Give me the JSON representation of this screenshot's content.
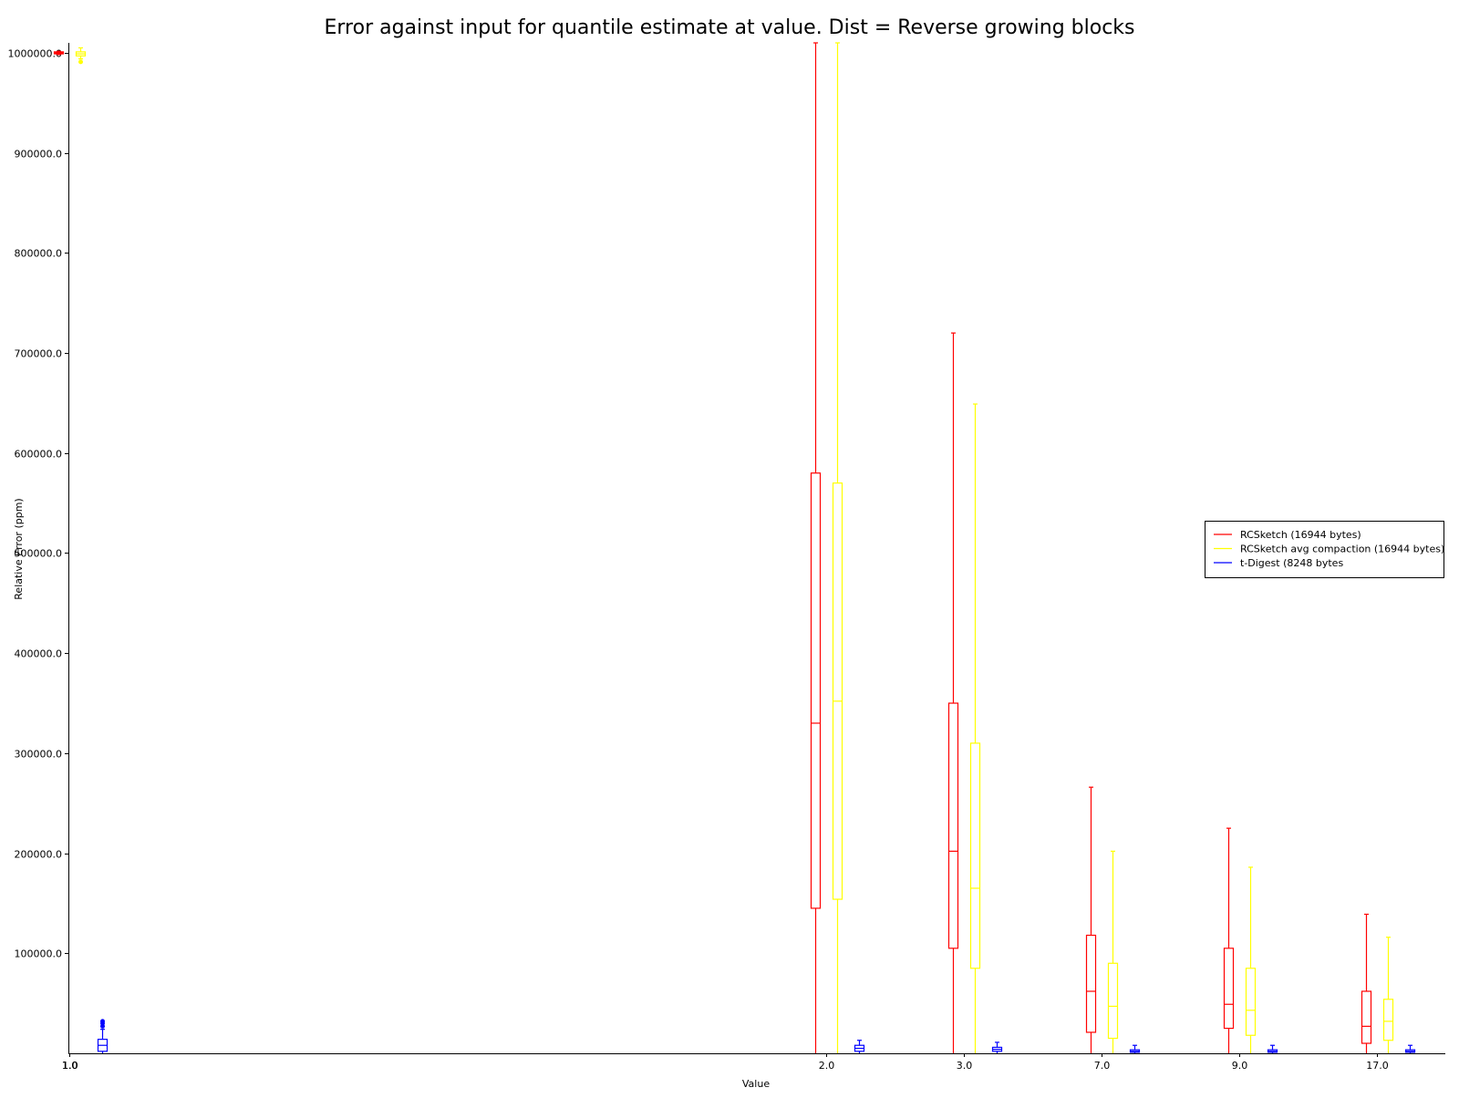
{
  "chart_data": {
    "type": "box",
    "title": "Error against input for quantile estimate at value. Dist = Reverse growing blocks",
    "xlabel": "Value",
    "ylabel": "Relative Error (ppm)",
    "ylim": [
      0,
      1010000
    ],
    "y_ticks": [
      {
        "value": 100000,
        "label": "100000.0"
      },
      {
        "value": 200000,
        "label": "200000.0"
      },
      {
        "value": 300000,
        "label": "300000.0"
      },
      {
        "value": 400000,
        "label": "400000.0"
      },
      {
        "value": 500000,
        "label": "500000.0"
      },
      {
        "value": 600000,
        "label": "600000.0"
      },
      {
        "value": 700000,
        "label": "700000.0"
      },
      {
        "value": 800000,
        "label": "800000.0"
      },
      {
        "value": 900000,
        "label": "900000.0"
      },
      {
        "value": 1000000,
        "label": "1000000.0"
      }
    ],
    "categories": [
      {
        "value": 1.0,
        "label": "1.0"
      },
      {
        "value": 2.0,
        "label": "2.0"
      },
      {
        "value": 3.0,
        "label": "3.0"
      },
      {
        "value": 7.0,
        "label": "7.0"
      },
      {
        "value": 9.0,
        "label": "9.0"
      },
      {
        "value": 17.0,
        "label": "17.0"
      }
    ],
    "legend_position": "center-right",
    "series": [
      {
        "name": "RCSketch (16944 bytes)",
        "color": "#ff0000",
        "boxes": [
          {
            "whisker_low": 998500,
            "q1": 999000,
            "median": 1000000,
            "q3": 1001000,
            "whisker_high": 1001500,
            "fliers": [
              1000000
            ]
          },
          {
            "whisker_low": 0,
            "q1": 145000,
            "median": 330000,
            "q3": 580000,
            "whisker_high": 1010000,
            "fliers": []
          },
          {
            "whisker_low": 0,
            "q1": 105000,
            "median": 202000,
            "q3": 350000,
            "whisker_high": 720000,
            "fliers": []
          },
          {
            "whisker_low": 0,
            "q1": 21000,
            "median": 62000,
            "q3": 118000,
            "whisker_high": 266000,
            "fliers": []
          },
          {
            "whisker_low": 0,
            "q1": 25000,
            "median": 49000,
            "q3": 105000,
            "whisker_high": 225000,
            "fliers": []
          },
          {
            "whisker_low": 0,
            "q1": 10000,
            "median": 27000,
            "q3": 62000,
            "whisker_high": 139000,
            "fliers": []
          }
        ]
      },
      {
        "name": "RCSketch avg compaction (16944 bytes)",
        "color": "#ffff00",
        "boxes": [
          {
            "whisker_low": 994000,
            "q1": 997000,
            "median": 999000,
            "q3": 1001000,
            "whisker_high": 1005000,
            "fliers": [
              991000
            ]
          },
          {
            "whisker_low": 0,
            "q1": 154000,
            "median": 352000,
            "q3": 570000,
            "whisker_high": 1010000,
            "fliers": []
          },
          {
            "whisker_low": 0,
            "q1": 85000,
            "median": 165000,
            "q3": 310000,
            "whisker_high": 649000,
            "fliers": []
          },
          {
            "whisker_low": 0,
            "q1": 15000,
            "median": 47000,
            "q3": 90000,
            "whisker_high": 202000,
            "fliers": []
          },
          {
            "whisker_low": 0,
            "q1": 18000,
            "median": 43000,
            "q3": 85000,
            "whisker_high": 186000,
            "fliers": []
          },
          {
            "whisker_low": 0,
            "q1": 13000,
            "median": 32000,
            "q3": 54000,
            "whisker_high": 116000,
            "fliers": []
          }
        ]
      },
      {
        "name": "t-Digest (8248 bytes",
        "color": "#0000ff",
        "boxes": [
          {
            "whisker_low": 0,
            "q1": 2000,
            "median": 8000,
            "q3": 14000,
            "whisker_high": 24000,
            "fliers": [
              27000,
              30000,
              32000
            ]
          },
          {
            "whisker_low": 0,
            "q1": 2000,
            "median": 5000,
            "q3": 8000,
            "whisker_high": 13000,
            "fliers": []
          },
          {
            "whisker_low": 0,
            "q1": 2000,
            "median": 4000,
            "q3": 6000,
            "whisker_high": 11000,
            "fliers": []
          },
          {
            "whisker_low": 0,
            "q1": 1000,
            "median": 2000,
            "q3": 3500,
            "whisker_high": 8000,
            "fliers": []
          },
          {
            "whisker_low": 0,
            "q1": 1000,
            "median": 2000,
            "q3": 3500,
            "whisker_high": 8000,
            "fliers": []
          },
          {
            "whisker_low": 0,
            "q1": 1000,
            "median": 2000,
            "q3": 3500,
            "whisker_high": 8000,
            "fliers": []
          }
        ]
      }
    ]
  }
}
